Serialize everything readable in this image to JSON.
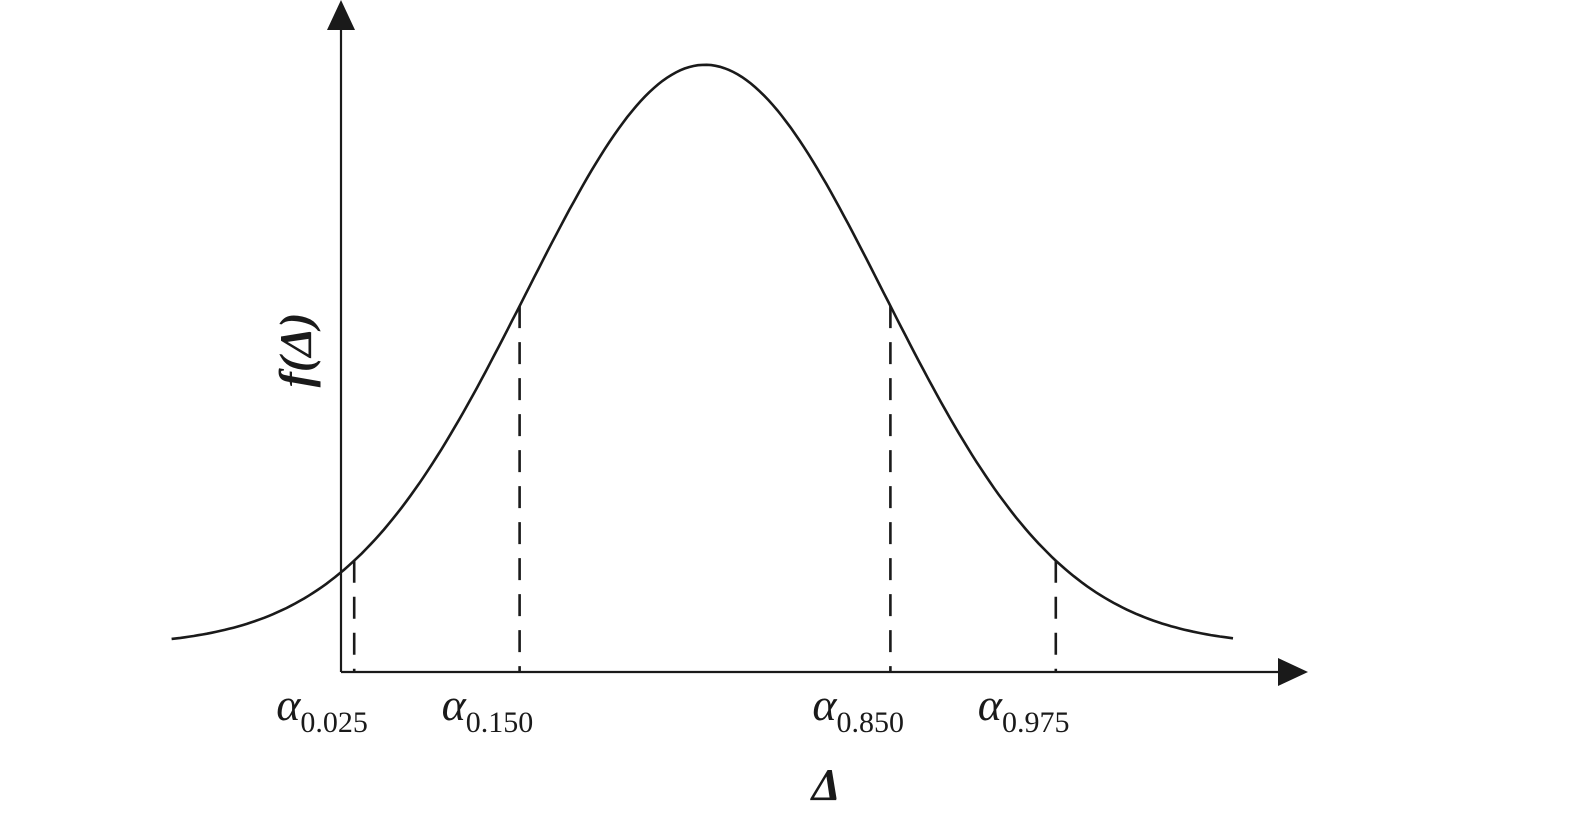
{
  "chart_data": {
    "type": "line",
    "title": "",
    "xlabel": "Δ",
    "ylabel": "f(Δ)",
    "x_ticks": [],
    "y_ticks": [],
    "grid": false,
    "distribution": "normal",
    "series": [
      {
        "x": [
          -3.0,
          -2.5,
          -2.0,
          -1.5,
          -1.0,
          -0.5,
          0.0,
          0.5,
          1.0,
          1.5,
          2.0,
          2.5,
          3.0
        ],
        "y": [
          0.0044,
          0.0175,
          0.054,
          0.1295,
          0.242,
          0.352,
          0.399,
          0.352,
          0.242,
          0.1295,
          0.054,
          0.0175,
          0.0044
        ]
      }
    ],
    "quantiles": [
      {
        "label": "α",
        "subscript": "0.025",
        "x": -1.96
      },
      {
        "label": "α",
        "subscript": "0.150",
        "x": -1.036
      },
      {
        "label": "α",
        "subscript": "0.850",
        "x": 1.036
      },
      {
        "label": "α",
        "subscript": "0.975",
        "x": 1.96
      }
    ]
  }
}
